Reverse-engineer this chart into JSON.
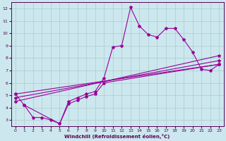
{
  "xlabel": "Windchill (Refroidissement éolien,°C)",
  "bg_color": "#cce8ee",
  "line_color": "#990099",
  "grid_color": "#aacccc",
  "xlim": [
    -0.5,
    23.5
  ],
  "ylim": [
    2.5,
    12.5
  ],
  "yticks": [
    3,
    4,
    5,
    6,
    7,
    8,
    9,
    10,
    11,
    12
  ],
  "xticks": [
    0,
    1,
    2,
    3,
    4,
    5,
    6,
    7,
    8,
    9,
    10,
    11,
    12,
    13,
    14,
    15,
    16,
    17,
    18,
    19,
    20,
    21,
    22,
    23
  ],
  "main_series": {
    "x": [
      0,
      1,
      2,
      3,
      4,
      5,
      6,
      7,
      8,
      9,
      10,
      11,
      12,
      13,
      14,
      15,
      16,
      17,
      18,
      19,
      20,
      21,
      22,
      23
    ],
    "y": [
      5.1,
      4.2,
      3.2,
      3.2,
      3.0,
      2.7,
      4.5,
      4.8,
      5.1,
      5.3,
      6.4,
      8.9,
      9.0,
      12.1,
      10.6,
      9.9,
      9.7,
      10.4,
      10.4,
      9.5,
      8.5,
      7.1,
      7.0,
      7.5
    ]
  },
  "trend_lines": [
    {
      "x": [
        0,
        23
      ],
      "y": [
        5.1,
        7.5
      ]
    },
    {
      "x": [
        0,
        23
      ],
      "y": [
        4.8,
        7.8
      ]
    },
    {
      "x": [
        0,
        23
      ],
      "y": [
        4.5,
        8.2
      ]
    },
    {
      "x": [
        1,
        5,
        6,
        7,
        8,
        9,
        10,
        23
      ],
      "y": [
        4.2,
        2.7,
        4.3,
        4.6,
        4.9,
        5.1,
        6.0,
        7.5
      ]
    }
  ]
}
